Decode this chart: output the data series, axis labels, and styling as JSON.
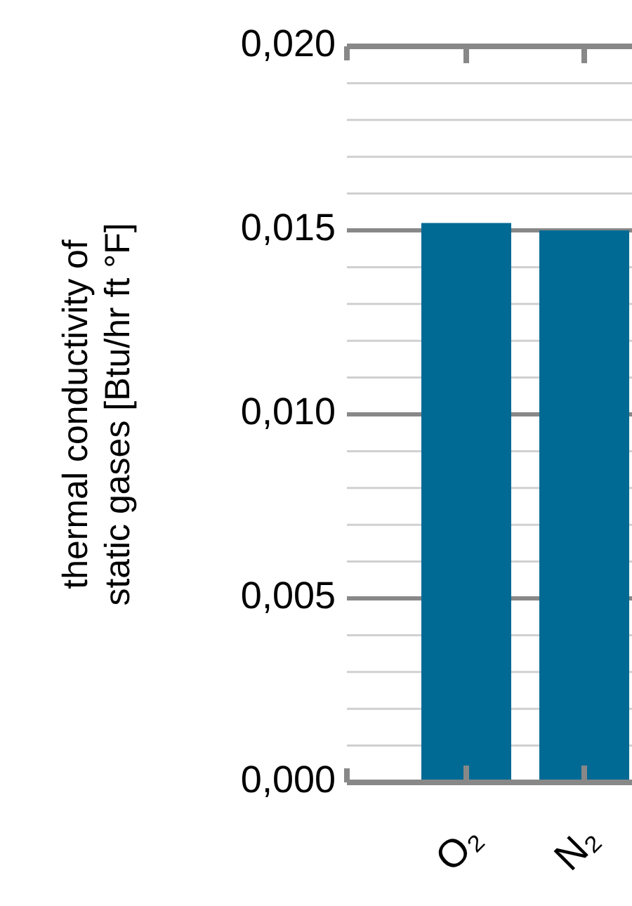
{
  "chart_data": {
    "type": "bar",
    "ylabel": "thermal conductivity of static gases [Btu/hr ft °F]",
    "categories": [
      "O₂",
      "N₂"
    ],
    "values": [
      0.0152,
      0.015
    ],
    "color": "#006a94",
    "ylim": [
      0,
      0.02
    ],
    "yticks": [
      {
        "value": 0,
        "label": "0,000"
      },
      {
        "value": 0.001,
        "label": null
      },
      {
        "value": 0.002,
        "label": null
      },
      {
        "value": 0.003,
        "label": null
      },
      {
        "value": 0.004,
        "label": null
      },
      {
        "value": 0.005,
        "label": "0,005"
      },
      {
        "value": 0.006,
        "label": null
      },
      {
        "value": 0.007,
        "label": null
      },
      {
        "value": 0.008,
        "label": null
      },
      {
        "value": 0.009,
        "label": null
      },
      {
        "value": 0.01,
        "label": "0,010"
      },
      {
        "value": 0.011,
        "label": null
      },
      {
        "value": 0.012,
        "label": null
      },
      {
        "value": 0.013,
        "label": null
      },
      {
        "value": 0.014,
        "label": null
      },
      {
        "value": 0.015,
        "label": "0,015"
      },
      {
        "value": 0.016,
        "label": null
      },
      {
        "value": 0.017,
        "label": null
      },
      {
        "value": 0.018,
        "label": null
      },
      {
        "value": 0.019,
        "label": null
      },
      {
        "value": 0.02,
        "label": "0,020"
      }
    ],
    "grid": "y"
  }
}
